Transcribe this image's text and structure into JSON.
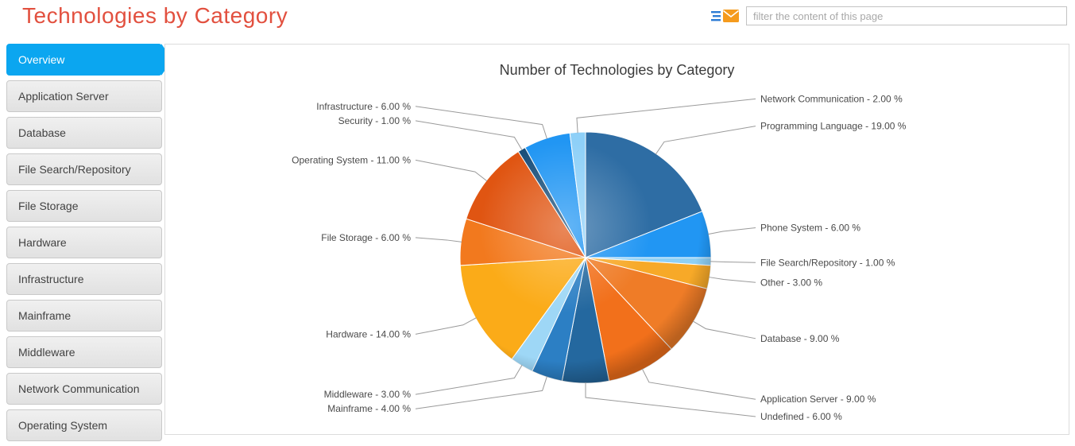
{
  "header": {
    "title": "Technologies by Category",
    "filter_placeholder": "filter the content of this page"
  },
  "sidebar": {
    "items": [
      {
        "label": "Overview",
        "active": true
      },
      {
        "label": "Application Server",
        "active": false
      },
      {
        "label": "Database",
        "active": false
      },
      {
        "label": "File Search/Repository",
        "active": false
      },
      {
        "label": "File Storage",
        "active": false
      },
      {
        "label": "Hardware",
        "active": false
      },
      {
        "label": "Infrastructure",
        "active": false
      },
      {
        "label": "Mainframe",
        "active": false
      },
      {
        "label": "Middleware",
        "active": false
      },
      {
        "label": "Network Communication",
        "active": false
      },
      {
        "label": "Operating System",
        "active": false
      }
    ]
  },
  "chart_data": {
    "type": "pie",
    "title": "Number of Technologies by Category",
    "unit": "%",
    "legend": "none",
    "slices": [
      {
        "name": "Programming Language",
        "value": 19,
        "label": "Programming Language - 19.00 %",
        "color": "#2e6da4"
      },
      {
        "name": "Phone System",
        "value": 6,
        "label": "Phone System - 6.00 %",
        "color": "#2196f3"
      },
      {
        "name": "File Search/Repository",
        "value": 1,
        "label": "File Search/Repository - 1.00 %",
        "color": "#8fd0f5"
      },
      {
        "name": "Other",
        "value": 3,
        "label": "Other - 3.00 %",
        "color": "#f7a928"
      },
      {
        "name": "Database",
        "value": 9,
        "label": "Database - 9.00 %",
        "color": "#ef7c27"
      },
      {
        "name": "Application Server",
        "value": 9,
        "label": "Application Server - 9.00 %",
        "color": "#f2701b"
      },
      {
        "name": "Undefined",
        "value": 6,
        "label": "Undefined - 6.00 %",
        "color": "#24689f"
      },
      {
        "name": "Mainframe",
        "value": 4,
        "label": "Mainframe - 4.00 %",
        "color": "#2c7fc4"
      },
      {
        "name": "Middleware",
        "value": 3,
        "label": "Middleware - 3.00 %",
        "color": "#9ed7f6"
      },
      {
        "name": "Hardware",
        "value": 14,
        "label": "Hardware - 14.00 %",
        "color": "#fbab18"
      },
      {
        "name": "File Storage",
        "value": 6,
        "label": "File Storage - 6.00 %",
        "color": "#f2791e"
      },
      {
        "name": "Operating System",
        "value": 11,
        "label": "Operating System - 11.00 %",
        "color": "#e05512"
      },
      {
        "name": "Security",
        "value": 1,
        "label": "Security - 1.00 %",
        "color": "#1a4f7a"
      },
      {
        "name": "Infrastructure",
        "value": 6,
        "label": "Infrastructure - 6.00 %",
        "color": "#2196f3"
      },
      {
        "name": "Network Communication",
        "value": 2,
        "label": "Network Communication - 2.00 %",
        "color": "#8ed0f8"
      }
    ]
  }
}
